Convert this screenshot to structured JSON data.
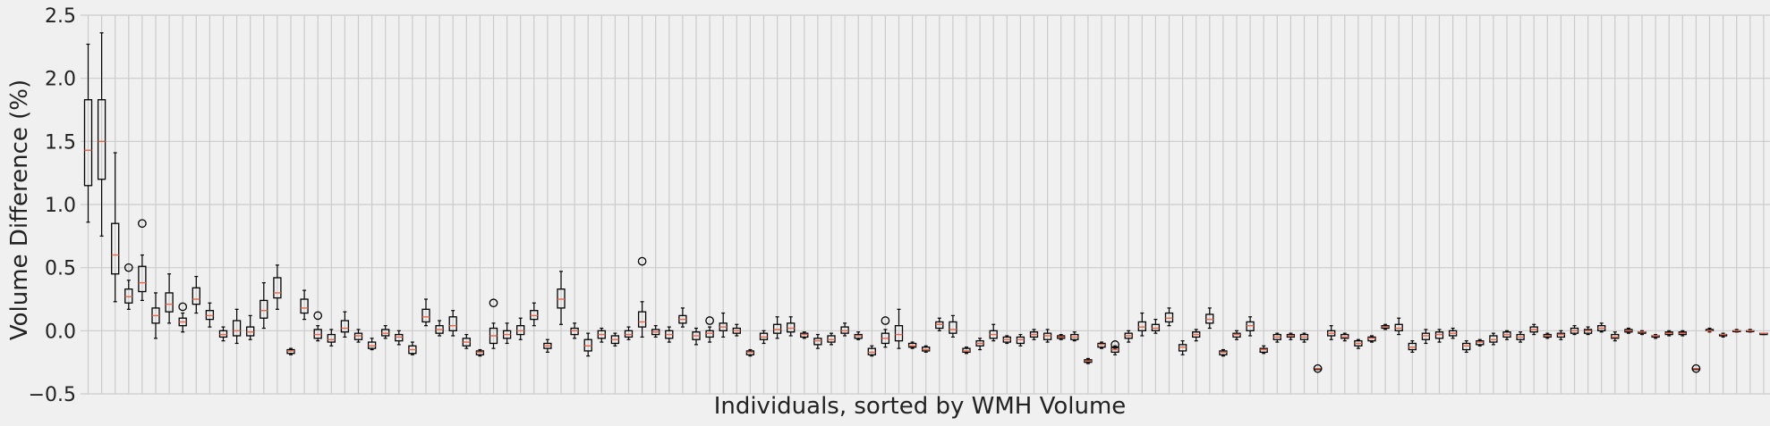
{
  "chart_data": {
    "type": "box",
    "title": "",
    "xlabel": "Individuals, sorted by WMH Volume",
    "ylabel": "Volume Difference (%)",
    "ylim": [
      -0.5,
      2.5
    ],
    "yticks": [
      -0.5,
      0.0,
      0.5,
      1.0,
      1.5,
      2.0,
      2.5
    ],
    "ytick_labels": [
      "−0.5",
      "0.0",
      "0.5",
      "1.0",
      "1.5",
      "2.0",
      "2.5"
    ],
    "grid": true,
    "x_tick_labels_shown": false,
    "boxes": [
      {
        "min": 0.86,
        "q1": 1.15,
        "median": 1.43,
        "q3": 1.83,
        "max": 2.27,
        "outliers": []
      },
      {
        "min": 0.75,
        "q1": 1.2,
        "median": 1.5,
        "q3": 1.83,
        "max": 2.36,
        "outliers": []
      },
      {
        "min": 0.23,
        "q1": 0.45,
        "median": 0.6,
        "q3": 0.85,
        "max": 1.41,
        "outliers": []
      },
      {
        "min": 0.17,
        "q1": 0.22,
        "median": 0.27,
        "q3": 0.33,
        "max": 0.4,
        "outliers": [
          0.5
        ]
      },
      {
        "min": 0.24,
        "q1": 0.31,
        "median": 0.38,
        "q3": 0.51,
        "max": 0.6,
        "outliers": [
          0.85
        ]
      },
      {
        "min": -0.06,
        "q1": 0.06,
        "median": 0.12,
        "q3": 0.18,
        "max": 0.3,
        "outliers": []
      },
      {
        "min": 0.06,
        "q1": 0.15,
        "median": 0.21,
        "q3": 0.3,
        "max": 0.45,
        "outliers": []
      },
      {
        "min": -0.01,
        "q1": 0.04,
        "median": 0.07,
        "q3": 0.1,
        "max": 0.14,
        "outliers": [
          0.19
        ]
      },
      {
        "min": 0.14,
        "q1": 0.21,
        "median": 0.25,
        "q3": 0.34,
        "max": 0.43,
        "outliers": []
      },
      {
        "min": 0.03,
        "q1": 0.09,
        "median": 0.12,
        "q3": 0.16,
        "max": 0.22,
        "outliers": []
      },
      {
        "min": -0.08,
        "q1": -0.05,
        "median": -0.03,
        "q3": 0.0,
        "max": 0.03,
        "outliers": []
      },
      {
        "min": -0.1,
        "q1": -0.04,
        "median": 0.0,
        "q3": 0.08,
        "max": 0.17,
        "outliers": []
      },
      {
        "min": -0.07,
        "q1": -0.04,
        "median": -0.01,
        "q3": 0.03,
        "max": 0.12,
        "outliers": []
      },
      {
        "min": 0.02,
        "q1": 0.1,
        "median": 0.16,
        "q3": 0.24,
        "max": 0.38,
        "outliers": []
      },
      {
        "min": 0.17,
        "q1": 0.26,
        "median": 0.3,
        "q3": 0.42,
        "max": 0.52,
        "outliers": []
      },
      {
        "min": -0.19,
        "q1": -0.18,
        "median": -0.16,
        "q3": -0.15,
        "max": -0.14,
        "outliers": []
      },
      {
        "min": 0.09,
        "q1": 0.14,
        "median": 0.18,
        "q3": 0.25,
        "max": 0.32,
        "outliers": []
      },
      {
        "min": -0.08,
        "q1": -0.06,
        "median": -0.03,
        "q3": 0.01,
        "max": 0.04,
        "outliers": [
          0.12
        ]
      },
      {
        "min": -0.12,
        "q1": -0.09,
        "median": -0.07,
        "q3": -0.03,
        "max": 0.01,
        "outliers": []
      },
      {
        "min": -0.05,
        "q1": -0.01,
        "median": 0.02,
        "q3": 0.08,
        "max": 0.15,
        "outliers": []
      },
      {
        "min": -0.09,
        "q1": -0.07,
        "median": -0.04,
        "q3": -0.02,
        "max": 0.01,
        "outliers": []
      },
      {
        "min": -0.15,
        "q1": -0.14,
        "median": -0.12,
        "q3": -0.09,
        "max": -0.06,
        "outliers": []
      },
      {
        "min": -0.06,
        "q1": -0.04,
        "median": -0.02,
        "q3": 0.01,
        "max": 0.04,
        "outliers": []
      },
      {
        "min": -0.11,
        "q1": -0.08,
        "median": -0.05,
        "q3": -0.03,
        "max": 0.0,
        "outliers": []
      },
      {
        "min": -0.19,
        "q1": -0.18,
        "median": -0.15,
        "q3": -0.12,
        "max": -0.09,
        "outliers": []
      },
      {
        "min": 0.04,
        "q1": 0.07,
        "median": 0.11,
        "q3": 0.17,
        "max": 0.25,
        "outliers": []
      },
      {
        "min": -0.04,
        "q1": -0.02,
        "median": 0.01,
        "q3": 0.04,
        "max": 0.08,
        "outliers": []
      },
      {
        "min": -0.04,
        "q1": 0.0,
        "median": 0.04,
        "q3": 0.11,
        "max": 0.16,
        "outliers": []
      },
      {
        "min": -0.14,
        "q1": -0.12,
        "median": -0.09,
        "q3": -0.06,
        "max": -0.03,
        "outliers": []
      },
      {
        "min": -0.2,
        "q1": -0.19,
        "median": -0.17,
        "q3": -0.16,
        "max": -0.15,
        "outliers": []
      },
      {
        "min": -0.14,
        "q1": -0.1,
        "median": -0.04,
        "q3": 0.02,
        "max": 0.06,
        "outliers": [
          0.22
        ]
      },
      {
        "min": -0.1,
        "q1": -0.06,
        "median": -0.03,
        "q3": 0.0,
        "max": 0.06,
        "outliers": []
      },
      {
        "min": -0.07,
        "q1": -0.03,
        "median": 0.0,
        "q3": 0.04,
        "max": 0.1,
        "outliers": []
      },
      {
        "min": 0.04,
        "q1": 0.09,
        "median": 0.12,
        "q3": 0.16,
        "max": 0.22,
        "outliers": []
      },
      {
        "min": -0.17,
        "q1": -0.14,
        "median": -0.12,
        "q3": -0.1,
        "max": -0.07,
        "outliers": []
      },
      {
        "min": 0.05,
        "q1": 0.18,
        "median": 0.25,
        "q3": 0.33,
        "max": 0.47,
        "outliers": []
      },
      {
        "min": -0.06,
        "q1": -0.03,
        "median": 0.0,
        "q3": 0.02,
        "max": 0.06,
        "outliers": []
      },
      {
        "min": -0.2,
        "q1": -0.16,
        "median": -0.12,
        "q3": -0.07,
        "max": -0.02,
        "outliers": []
      },
      {
        "min": -0.09,
        "q1": -0.06,
        "median": -0.03,
        "q3": 0.0,
        "max": 0.02,
        "outliers": []
      },
      {
        "min": -0.12,
        "q1": -0.1,
        "median": -0.07,
        "q3": -0.04,
        "max": -0.02,
        "outliers": []
      },
      {
        "min": -0.07,
        "q1": -0.05,
        "median": -0.03,
        "q3": 0.0,
        "max": 0.03,
        "outliers": []
      },
      {
        "min": -0.05,
        "q1": 0.03,
        "median": 0.07,
        "q3": 0.15,
        "max": 0.23,
        "outliers": [
          0.55
        ]
      },
      {
        "min": -0.05,
        "q1": -0.03,
        "median": -0.01,
        "q3": 0.01,
        "max": 0.04,
        "outliers": []
      },
      {
        "min": -0.09,
        "q1": -0.06,
        "median": -0.03,
        "q3": 0.0,
        "max": 0.03,
        "outliers": []
      },
      {
        "min": 0.03,
        "q1": 0.06,
        "median": 0.09,
        "q3": 0.12,
        "max": 0.18,
        "outliers": []
      },
      {
        "min": -0.11,
        "q1": -0.07,
        "median": -0.04,
        "q3": -0.01,
        "max": 0.02,
        "outliers": []
      },
      {
        "min": -0.09,
        "q1": -0.05,
        "median": -0.02,
        "q3": 0.0,
        "max": 0.03,
        "outliers": [
          0.08
        ]
      },
      {
        "min": -0.05,
        "q1": 0.0,
        "median": 0.03,
        "q3": 0.06,
        "max": 0.14,
        "outliers": []
      },
      {
        "min": -0.04,
        "q1": -0.02,
        "median": 0.0,
        "q3": 0.02,
        "max": 0.05,
        "outliers": []
      },
      {
        "min": -0.2,
        "q1": -0.19,
        "median": -0.17,
        "q3": -0.16,
        "max": -0.15,
        "outliers": []
      },
      {
        "min": -0.1,
        "q1": -0.07,
        "median": -0.05,
        "q3": -0.02,
        "max": 0.0,
        "outliers": []
      },
      {
        "min": -0.06,
        "q1": -0.02,
        "median": 0.01,
        "q3": 0.05,
        "max": 0.11,
        "outliers": []
      },
      {
        "min": -0.04,
        "q1": -0.01,
        "median": 0.02,
        "q3": 0.06,
        "max": 0.11,
        "outliers": []
      },
      {
        "min": -0.06,
        "q1": -0.05,
        "median": -0.03,
        "q3": -0.02,
        "max": -0.01,
        "outliers": []
      },
      {
        "min": -0.14,
        "q1": -0.11,
        "median": -0.08,
        "q3": -0.06,
        "max": -0.03,
        "outliers": []
      },
      {
        "min": -0.11,
        "q1": -0.09,
        "median": -0.07,
        "q3": -0.04,
        "max": -0.02,
        "outliers": []
      },
      {
        "min": -0.04,
        "q1": -0.02,
        "median": 0.0,
        "q3": 0.03,
        "max": 0.06,
        "outliers": []
      },
      {
        "min": -0.07,
        "q1": -0.06,
        "median": -0.04,
        "q3": -0.03,
        "max": -0.01,
        "outliers": []
      },
      {
        "min": -0.2,
        "q1": -0.19,
        "median": -0.17,
        "q3": -0.14,
        "max": -0.12,
        "outliers": []
      },
      {
        "min": -0.13,
        "q1": -0.1,
        "median": -0.06,
        "q3": -0.02,
        "max": 0.01,
        "outliers": [
          0.08
        ]
      },
      {
        "min": -0.14,
        "q1": -0.08,
        "median": -0.03,
        "q3": 0.04,
        "max": 0.17,
        "outliers": []
      },
      {
        "min": -0.14,
        "q1": -0.13,
        "median": -0.12,
        "q3": -0.1,
        "max": -0.09,
        "outliers": []
      },
      {
        "min": -0.17,
        "q1": -0.16,
        "median": -0.15,
        "q3": -0.13,
        "max": -0.12,
        "outliers": []
      },
      {
        "min": 0.0,
        "q1": 0.02,
        "median": 0.05,
        "q3": 0.07,
        "max": 0.1,
        "outliers": []
      },
      {
        "min": -0.05,
        "q1": -0.02,
        "median": 0.01,
        "q3": 0.07,
        "max": 0.12,
        "outliers": []
      },
      {
        "min": -0.18,
        "q1": -0.17,
        "median": -0.16,
        "q3": -0.14,
        "max": -0.13,
        "outliers": []
      },
      {
        "min": -0.15,
        "q1": -0.12,
        "median": -0.1,
        "q3": -0.08,
        "max": -0.06,
        "outliers": []
      },
      {
        "min": -0.08,
        "q1": -0.06,
        "median": -0.03,
        "q3": 0.0,
        "max": 0.05,
        "outliers": []
      },
      {
        "min": -0.1,
        "q1": -0.09,
        "median": -0.07,
        "q3": -0.05,
        "max": -0.04,
        "outliers": []
      },
      {
        "min": -0.12,
        "q1": -0.1,
        "median": -0.07,
        "q3": -0.05,
        "max": -0.03,
        "outliers": []
      },
      {
        "min": -0.07,
        "q1": -0.05,
        "median": -0.03,
        "q3": -0.01,
        "max": 0.01,
        "outliers": []
      },
      {
        "min": -0.09,
        "q1": -0.07,
        "median": -0.04,
        "q3": -0.02,
        "max": 0.01,
        "outliers": []
      },
      {
        "min": -0.07,
        "q1": -0.06,
        "median": -0.05,
        "q3": -0.04,
        "max": -0.03,
        "outliers": []
      },
      {
        "min": -0.08,
        "q1": -0.07,
        "median": -0.05,
        "q3": -0.03,
        "max": -0.01,
        "outliers": []
      },
      {
        "min": -0.26,
        "q1": -0.25,
        "median": -0.24,
        "q3": -0.23,
        "max": -0.22,
        "outliers": []
      },
      {
        "min": -0.14,
        "q1": -0.13,
        "median": -0.11,
        "q3": -0.1,
        "max": -0.09,
        "outliers": []
      },
      {
        "min": -0.19,
        "q1": -0.17,
        "median": -0.15,
        "q3": -0.13,
        "max": -0.12,
        "outliers": [
          -0.11
        ]
      },
      {
        "min": -0.09,
        "q1": -0.06,
        "median": -0.04,
        "q3": -0.02,
        "max": 0.0,
        "outliers": []
      },
      {
        "min": -0.04,
        "q1": 0.0,
        "median": 0.03,
        "q3": 0.07,
        "max": 0.14,
        "outliers": []
      },
      {
        "min": -0.02,
        "q1": 0.0,
        "median": 0.02,
        "q3": 0.05,
        "max": 0.09,
        "outliers": []
      },
      {
        "min": 0.04,
        "q1": 0.07,
        "median": 0.1,
        "q3": 0.14,
        "max": 0.18,
        "outliers": []
      },
      {
        "min": -0.19,
        "q1": -0.16,
        "median": -0.13,
        "q3": -0.11,
        "max": -0.08,
        "outliers": []
      },
      {
        "min": -0.08,
        "q1": -0.05,
        "median": -0.03,
        "q3": -0.01,
        "max": 0.01,
        "outliers": []
      },
      {
        "min": 0.02,
        "q1": 0.06,
        "median": 0.09,
        "q3": 0.13,
        "max": 0.18,
        "outliers": []
      },
      {
        "min": -0.2,
        "q1": -0.19,
        "median": -0.17,
        "q3": -0.16,
        "max": -0.15,
        "outliers": []
      },
      {
        "min": -0.07,
        "q1": -0.05,
        "median": -0.03,
        "q3": -0.02,
        "max": 0.0,
        "outliers": []
      },
      {
        "min": -0.04,
        "q1": 0.0,
        "median": 0.04,
        "q3": 0.07,
        "max": 0.11,
        "outliers": []
      },
      {
        "min": -0.18,
        "q1": -0.17,
        "median": -0.15,
        "q3": -0.14,
        "max": -0.12,
        "outliers": []
      },
      {
        "min": -0.09,
        "q1": -0.07,
        "median": -0.05,
        "q3": -0.03,
        "max": -0.02,
        "outliers": []
      },
      {
        "min": -0.07,
        "q1": -0.05,
        "median": -0.04,
        "q3": -0.03,
        "max": -0.02,
        "outliers": []
      },
      {
        "min": -0.09,
        "q1": -0.07,
        "median": -0.05,
        "q3": -0.03,
        "max": -0.02,
        "outliers": []
      },
      {
        "min": -0.3,
        "q1": -0.3,
        "median": -0.3,
        "q3": -0.3,
        "max": -0.3,
        "outliers": [
          -0.3
        ]
      },
      {
        "min": -0.07,
        "q1": -0.04,
        "median": -0.02,
        "q3": 0.0,
        "max": 0.04,
        "outliers": []
      },
      {
        "min": -0.08,
        "q1": -0.06,
        "median": -0.05,
        "q3": -0.03,
        "max": -0.02,
        "outliers": []
      },
      {
        "min": -0.14,
        "q1": -0.12,
        "median": -0.1,
        "q3": -0.08,
        "max": -0.07,
        "outliers": []
      },
      {
        "min": -0.09,
        "q1": -0.08,
        "median": -0.06,
        "q3": -0.05,
        "max": -0.04,
        "outliers": []
      },
      {
        "min": 0.01,
        "q1": 0.02,
        "median": 0.03,
        "q3": 0.04,
        "max": 0.05,
        "outliers": []
      },
      {
        "min": -0.03,
        "q1": 0.0,
        "median": 0.02,
        "q3": 0.05,
        "max": 0.1,
        "outliers": []
      },
      {
        "min": -0.17,
        "q1": -0.15,
        "median": -0.13,
        "q3": -0.1,
        "max": -0.08,
        "outliers": []
      },
      {
        "min": -0.1,
        "q1": -0.07,
        "median": -0.04,
        "q3": -0.02,
        "max": 0.01,
        "outliers": []
      },
      {
        "min": -0.09,
        "q1": -0.06,
        "median": -0.03,
        "q3": -0.01,
        "max": 0.01,
        "outliers": []
      },
      {
        "min": -0.06,
        "q1": -0.04,
        "median": -0.02,
        "q3": 0.0,
        "max": 0.02,
        "outliers": []
      },
      {
        "min": -0.17,
        "q1": -0.15,
        "median": -0.12,
        "q3": -0.1,
        "max": -0.08,
        "outliers": []
      },
      {
        "min": -0.12,
        "q1": -0.11,
        "median": -0.09,
        "q3": -0.08,
        "max": -0.07,
        "outliers": []
      },
      {
        "min": -0.11,
        "q1": -0.09,
        "median": -0.07,
        "q3": -0.04,
        "max": -0.02,
        "outliers": []
      },
      {
        "min": -0.07,
        "q1": -0.05,
        "median": -0.03,
        "q3": -0.01,
        "max": 0.0,
        "outliers": []
      },
      {
        "min": -0.09,
        "q1": -0.07,
        "median": -0.05,
        "q3": -0.03,
        "max": -0.01,
        "outliers": []
      },
      {
        "min": -0.03,
        "q1": -0.01,
        "median": 0.01,
        "q3": 0.03,
        "max": 0.05,
        "outliers": []
      },
      {
        "min": -0.06,
        "q1": -0.05,
        "median": -0.04,
        "q3": -0.03,
        "max": -0.02,
        "outliers": []
      },
      {
        "min": -0.07,
        "q1": -0.05,
        "median": -0.03,
        "q3": -0.02,
        "max": 0.0,
        "outliers": []
      },
      {
        "min": -0.03,
        "q1": -0.02,
        "median": 0.0,
        "q3": 0.02,
        "max": 0.04,
        "outliers": []
      },
      {
        "min": -0.03,
        "q1": -0.02,
        "median": 0.0,
        "q3": 0.01,
        "max": 0.03,
        "outliers": []
      },
      {
        "min": -0.01,
        "q1": 0.0,
        "median": 0.02,
        "q3": 0.04,
        "max": 0.06,
        "outliers": []
      },
      {
        "min": -0.08,
        "q1": -0.06,
        "median": -0.05,
        "q3": -0.03,
        "max": -0.01,
        "outliers": []
      },
      {
        "min": -0.02,
        "q1": -0.01,
        "median": 0.0,
        "q3": 0.01,
        "max": 0.02,
        "outliers": []
      },
      {
        "min": -0.03,
        "q1": -0.02,
        "median": -0.01,
        "q3": -0.01,
        "max": 0.0,
        "outliers": []
      },
      {
        "min": -0.06,
        "q1": -0.05,
        "median": -0.04,
        "q3": -0.04,
        "max": -0.03,
        "outliers": []
      },
      {
        "min": -0.04,
        "q1": -0.03,
        "median": -0.02,
        "q3": -0.01,
        "max": 0.0,
        "outliers": []
      },
      {
        "min": -0.04,
        "q1": -0.03,
        "median": -0.02,
        "q3": -0.01,
        "max": 0.0,
        "outliers": []
      },
      {
        "min": -0.3,
        "q1": -0.3,
        "median": -0.3,
        "q3": -0.3,
        "max": -0.3,
        "outliers": [
          -0.3
        ]
      },
      {
        "min": -0.01,
        "q1": 0.0,
        "median": 0.0,
        "q3": 0.01,
        "max": 0.02,
        "outliers": []
      },
      {
        "min": -0.05,
        "q1": -0.04,
        "median": -0.03,
        "q3": -0.03,
        "max": -0.02,
        "outliers": []
      },
      {
        "min": -0.01,
        "q1": 0.0,
        "median": 0.0,
        "q3": 0.0,
        "max": 0.01,
        "outliers": []
      },
      {
        "min": -0.01,
        "q1": 0.0,
        "median": 0.0,
        "q3": 0.0,
        "max": 0.01,
        "outliers": []
      },
      {
        "min": -0.03,
        "q1": -0.03,
        "median": -0.02,
        "q3": -0.02,
        "max": -0.02,
        "outliers": []
      }
    ]
  },
  "colors": {
    "background": "#f0f0f0",
    "grid": "#cbcbcb",
    "box": "#000000",
    "median": "#e8664a",
    "text": "#222222"
  }
}
